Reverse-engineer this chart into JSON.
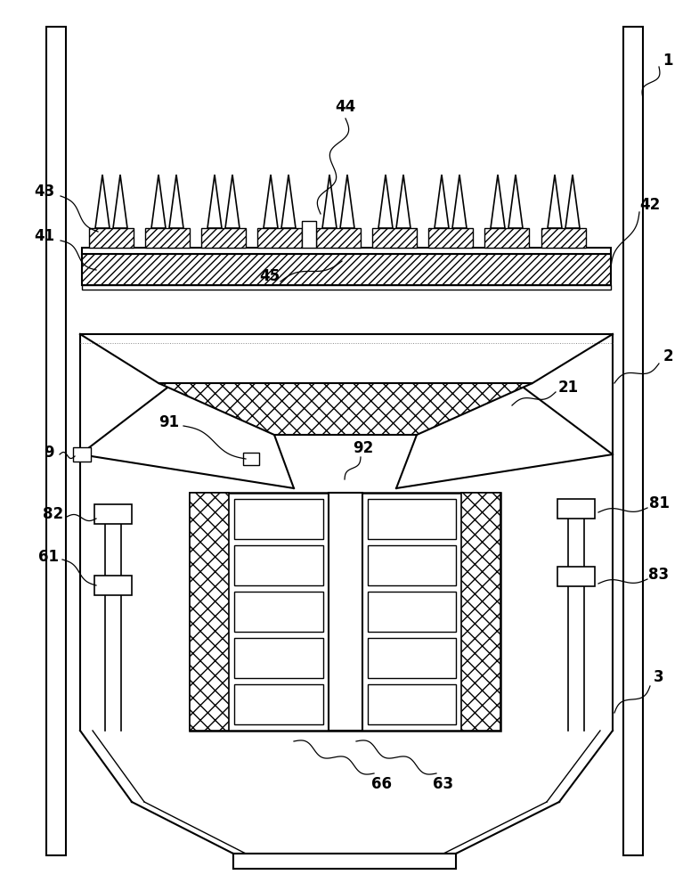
{
  "fig_width": 7.76,
  "fig_height": 10.0,
  "bg_color": "#ffffff",
  "line_color": "#000000"
}
